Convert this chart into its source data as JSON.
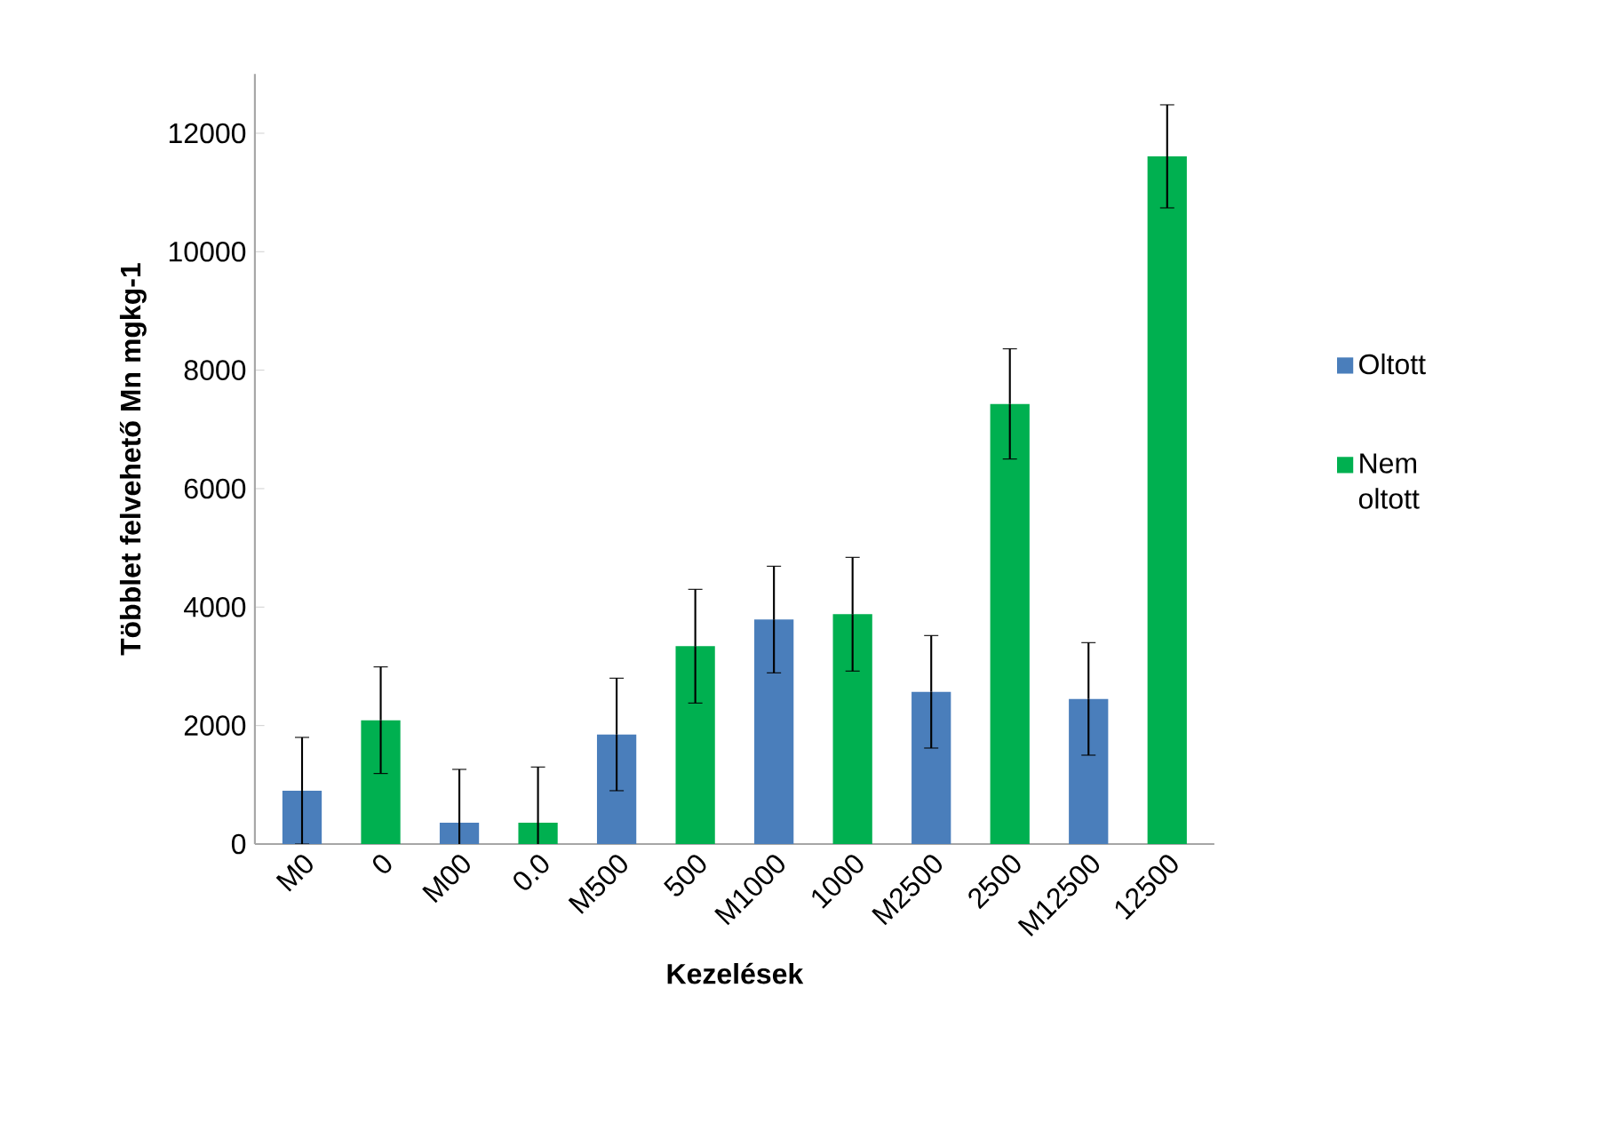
{
  "chart_data": {
    "type": "bar",
    "xlabel": "Kezelések",
    "ylabel": "Többlet felvehető Mn mgkg-1",
    "categories": [
      "M0",
      "0",
      "M00",
      "0.0",
      "M500",
      "500",
      "M1000",
      "1000",
      "M2500",
      "2500",
      "M12500",
      "12500"
    ],
    "series": [
      {
        "name": "Oltott",
        "color": "#4a7ebb",
        "values": [
          900,
          null,
          360,
          null,
          1850,
          null,
          3790,
          null,
          2570,
          null,
          2450,
          null
        ],
        "errors": [
          900,
          null,
          900,
          null,
          950,
          null,
          900,
          null,
          950,
          null,
          950,
          null
        ]
      },
      {
        "name": "Nem oltott",
        "color": "#00b050",
        "values": [
          null,
          2090,
          null,
          360,
          null,
          3340,
          null,
          3880,
          null,
          7430,
          null,
          11610
        ],
        "errors": [
          null,
          900,
          null,
          940,
          null,
          960,
          null,
          960,
          null,
          930,
          null,
          870
        ]
      }
    ],
    "ylim": [
      0,
      13000
    ],
    "yticks": [
      0,
      2000,
      4000,
      6000,
      8000,
      10000,
      12000
    ],
    "grid": false,
    "legend": "right"
  }
}
